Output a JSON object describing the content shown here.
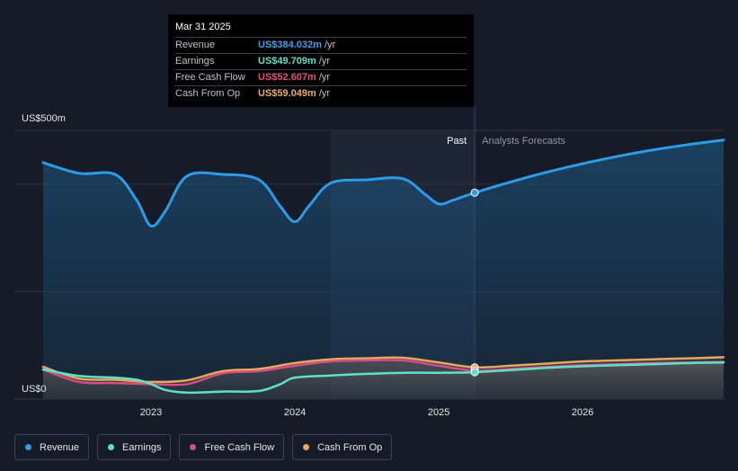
{
  "tooltip": {
    "date": "Mar 31 2025",
    "rows": [
      {
        "label": "Revenue",
        "value": "US$384.032m",
        "unit": "/yr",
        "color": "#3ea0e8"
      },
      {
        "label": "Earnings",
        "value": "US$49.709m",
        "unit": "/yr",
        "color": "#5fe0c8"
      },
      {
        "label": "Free Cash Flow",
        "value": "US$52.607m",
        "unit": "/yr",
        "color": "#e0508a"
      },
      {
        "label": "Cash From Op",
        "value": "US$59.049m",
        "unit": "/yr",
        "color": "#e8b06a"
      }
    ]
  },
  "legend": [
    {
      "label": "Revenue",
      "color": "#2d9be8"
    },
    {
      "label": "Earnings",
      "color": "#5fe0c8"
    },
    {
      "label": "Free Cash Flow",
      "color": "#d94d86"
    },
    {
      "label": "Cash From Op",
      "color": "#e8a85c"
    }
  ],
  "chart_data": {
    "type": "line",
    "ylabels": {
      "top": "US$500m",
      "bottom": "US$0"
    },
    "ylim": [
      0,
      500
    ],
    "xticks": [
      "2023",
      "2024",
      "2025",
      "2026"
    ],
    "xlim": [
      2022.25,
      2026.98
    ],
    "past_label": "Past",
    "forecast_label": "Analysts Forecasts",
    "divider_x": 2025.25,
    "highlight_range": [
      2024.25,
      2025.25
    ],
    "series": [
      {
        "name": "Revenue",
        "color": "#2d9be8",
        "points": [
          [
            2022.25,
            440
          ],
          [
            2022.5,
            420
          ],
          [
            2022.75,
            418
          ],
          [
            2022.9,
            370
          ],
          [
            2023.0,
            322
          ],
          [
            2023.1,
            350
          ],
          [
            2023.25,
            415
          ],
          [
            2023.5,
            418
          ],
          [
            2023.75,
            408
          ],
          [
            2023.9,
            358
          ],
          [
            2024.0,
            330
          ],
          [
            2024.1,
            360
          ],
          [
            2024.25,
            402
          ],
          [
            2024.5,
            408
          ],
          [
            2024.75,
            410
          ],
          [
            2024.9,
            382
          ],
          [
            2025.0,
            363
          ],
          [
            2025.1,
            370
          ],
          [
            2025.25,
            384
          ],
          [
            2025.5,
            404
          ],
          [
            2025.75,
            422
          ],
          [
            2026.0,
            438
          ],
          [
            2026.25,
            452
          ],
          [
            2026.5,
            464
          ],
          [
            2026.75,
            474
          ],
          [
            2026.98,
            482
          ]
        ]
      },
      {
        "name": "Earnings",
        "color": "#5fe0c8",
        "points": [
          [
            2022.25,
            55
          ],
          [
            2022.5,
            43
          ],
          [
            2022.75,
            40
          ],
          [
            2022.9,
            36
          ],
          [
            2023.0,
            28
          ],
          [
            2023.1,
            17
          ],
          [
            2023.25,
            12
          ],
          [
            2023.5,
            14
          ],
          [
            2023.75,
            15
          ],
          [
            2023.9,
            28
          ],
          [
            2024.0,
            40
          ],
          [
            2024.25,
            44
          ],
          [
            2024.5,
            47
          ],
          [
            2024.75,
            49
          ],
          [
            2025.0,
            49
          ],
          [
            2025.25,
            50
          ],
          [
            2025.5,
            54
          ],
          [
            2025.75,
            58
          ],
          [
            2026.0,
            61
          ],
          [
            2026.25,
            63
          ],
          [
            2026.5,
            65
          ],
          [
            2026.75,
            67
          ],
          [
            2026.98,
            68
          ]
        ]
      },
      {
        "name": "Free Cash Flow",
        "color": "#d94d86",
        "points": [
          [
            2022.25,
            55
          ],
          [
            2022.5,
            32
          ],
          [
            2022.75,
            30
          ],
          [
            2023.0,
            28
          ],
          [
            2023.25,
            28
          ],
          [
            2023.5,
            48
          ],
          [
            2023.75,
            52
          ],
          [
            2024.0,
            62
          ],
          [
            2024.25,
            70
          ],
          [
            2024.5,
            72
          ],
          [
            2024.75,
            72
          ],
          [
            2025.0,
            62
          ],
          [
            2025.25,
            53
          ],
          [
            2025.5,
            56
          ],
          [
            2025.75,
            60
          ],
          [
            2026.0,
            63
          ],
          [
            2026.25,
            65
          ],
          [
            2026.5,
            67
          ],
          [
            2026.75,
            68
          ],
          [
            2026.98,
            69
          ]
        ]
      },
      {
        "name": "Cash From Op",
        "color": "#e8a85c",
        "points": [
          [
            2022.25,
            60
          ],
          [
            2022.5,
            38
          ],
          [
            2022.75,
            36
          ],
          [
            2023.0,
            32
          ],
          [
            2023.25,
            35
          ],
          [
            2023.5,
            52
          ],
          [
            2023.75,
            56
          ],
          [
            2024.0,
            67
          ],
          [
            2024.25,
            74
          ],
          [
            2024.5,
            76
          ],
          [
            2024.75,
            77
          ],
          [
            2025.0,
            68
          ],
          [
            2025.25,
            59
          ],
          [
            2025.5,
            62
          ],
          [
            2025.75,
            66
          ],
          [
            2026.0,
            70
          ],
          [
            2026.25,
            72
          ],
          [
            2026.5,
            74
          ],
          [
            2026.75,
            76
          ],
          [
            2026.98,
            78
          ]
        ]
      }
    ]
  }
}
